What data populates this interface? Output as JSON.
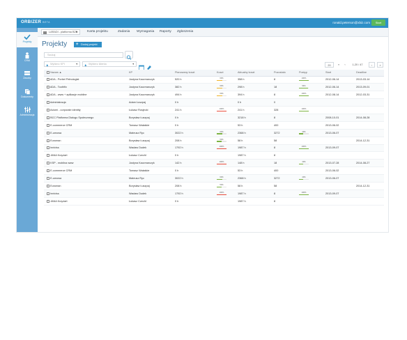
{
  "topbar": {
    "logo": "ORBIZER",
    "logo_sub": "BETA",
    "user_email": "ronald.peterson@xbiz.com",
    "start_label": "Start"
  },
  "sidebar": {
    "items": [
      {
        "label": "Projekty",
        "icon": "check-icon",
        "active": true
      },
      {
        "label": "CRM",
        "icon": "person-icon",
        "active": false
      },
      {
        "label": "Zasoby",
        "icon": "box-icon",
        "active": false
      },
      {
        "label": "Dokumenty",
        "icon": "documents-icon",
        "active": false
      },
      {
        "label": "Administracja",
        "icon": "sliders-icon",
        "active": false
      }
    ]
  },
  "navbar": {
    "project_select": "LARADI - platforma B2B",
    "items": [
      "Karta projektu",
      "Zadania",
      "Wymagania",
      "Raporty",
      "Zgłoszenia"
    ]
  },
  "main": {
    "title": "Projekty",
    "add_button": "Dodaj projekt",
    "search_placeholder": "Szukaj",
    "filter_kp_placeholder": "Wybierz KPI",
    "filter_client_placeholder": "Wybierz klienta",
    "page_size": "20",
    "page_range": "1-20 / 47"
  },
  "table": {
    "columns": [
      "Nazwa",
      "KP",
      "Planowany koszt",
      "Koszt",
      "Aktualny koszt",
      "Pozostało",
      "Postęp",
      "Start",
      "Deadline"
    ],
    "rows": [
      {
        "name": "ADA - Porbel Pełnologist",
        "kp": "Justyna Kaczmarczyk",
        "planned": "520 h",
        "cost_pct": 60,
        "cost_lbl": "60%",
        "cost_color": "#f0b429",
        "actual": "358 h",
        "left": "8",
        "prog_pct": 100,
        "prog_lbl": "100%",
        "start": "2012-06-14",
        "deadline": "2013-03-14"
      },
      {
        "name": "ADA - Toothfix",
        "kp": "Justyna Kaczmarczyk",
        "planned": "382 h",
        "cost_pct": 60,
        "cost_lbl": "60%",
        "cost_color": "#f0b429",
        "actual": "298 h",
        "left": "18",
        "prog_pct": 94,
        "prog_lbl": "94%",
        "start": "2012-06-14",
        "deadline": "2013-09-01"
      },
      {
        "name": "ADA - www + aplikacje mobilne",
        "kp": "Justyna Kaczmarczyk",
        "planned": "494 h",
        "cost_pct": 60,
        "cost_lbl": "60%",
        "cost_color": "#f0b429",
        "actual": "394 h",
        "left": "8",
        "prog_pct": 100,
        "prog_lbl": "100%",
        "start": "2012-08-14",
        "deadline": "2012-03-31"
      },
      {
        "name": "Administracja",
        "kp": "Adam Łuszpaj",
        "planned": "0 h",
        "cost_pct": 0,
        "cost_lbl": "",
        "cost_color": "#f0b429",
        "actual": "0 h",
        "left": "0",
        "prog_pct": 0,
        "prog_lbl": "",
        "start": "",
        "deadline": ""
      },
      {
        "name": "Aviomi - corporate identity",
        "kp": "Łukasz Rosjecki",
        "planned": "241 h",
        "cost_pct": 100,
        "cost_lbl": "100%",
        "cost_color": "#e74c3c",
        "actual": "241 h",
        "left": "328",
        "prog_pct": 100,
        "prog_lbl": "100%",
        "start": "",
        "deadline": ""
      },
      {
        "name": "BCC Platforma Dialogu Społecznego",
        "kp": "Borysław Łuszpaj",
        "planned": "0 h",
        "cost_pct": 0,
        "cost_lbl": "",
        "cost_color": "#f0b429",
        "actual": "3218 h",
        "left": "8",
        "prog_pct": 0,
        "prog_lbl": "",
        "start": "2008-10-01",
        "deadline": "2014-08-28"
      },
      {
        "name": "E-commerce CRM",
        "kp": "Tomasz Walaśkie",
        "planned": "0 h",
        "cost_pct": 0,
        "cost_lbl": "",
        "cost_color": "#f0b429",
        "actual": "53 h",
        "left": "400",
        "prog_pct": 0,
        "prog_lbl": "",
        "start": "2013-06-02",
        "deadline": ""
      },
      {
        "name": "E-umowa",
        "kp": "Mateusz Ryc",
        "planned": "3022 h",
        "cost_pct": 60,
        "cost_lbl": "60%",
        "cost_color": "#7cb342",
        "actual": "2368 h",
        "left": "3272",
        "prog_pct": 40,
        "prog_lbl": "40%",
        "start": "2013-06-07",
        "deadline": ""
      },
      {
        "name": "Euroman",
        "kp": "Borysław Łuszpaj",
        "planned": "208 h",
        "cost_pct": 50,
        "cost_lbl": "50%",
        "cost_color": "#7cb342",
        "actual": "58 h",
        "left": "58",
        "prog_pct": 0,
        "prog_lbl": "",
        "start": "",
        "deadline": "2014-12-31"
      },
      {
        "name": "Inniviss",
        "kp": "Wacław Dudek",
        "planned": "1792 h",
        "cost_pct": 100,
        "cost_lbl": "100%",
        "cost_color": "#e74c3c",
        "actual": "1987 h",
        "left": "8",
        "prog_pct": 100,
        "prog_lbl": "100%",
        "start": "2013-09-07",
        "deadline": ""
      },
      {
        "name": "JANA Krzyżart",
        "kp": "Łukasz Czechł",
        "planned": "0 h",
        "cost_pct": 0,
        "cost_lbl": "",
        "cost_color": "#f0b429",
        "actual": "1987 h",
        "left": "8",
        "prog_pct": 0,
        "prog_lbl": "",
        "start": "",
        "deadline": ""
      },
      {
        "name": "KSP - mobilna www",
        "kp": "Justyna Kaczmarczyk",
        "planned": "142 h",
        "cost_pct": 100,
        "cost_lbl": "100%",
        "cost_color": "#e74c3c",
        "actual": "148 h",
        "left": "18",
        "prog_pct": 40,
        "prog_lbl": "40%",
        "start": "2013-07-28",
        "deadline": "2014-08-27"
      },
      {
        "name": "E-commerce CRM",
        "kp": "Tomasz Walaśkie",
        "planned": "0 h",
        "cost_pct": 0,
        "cost_lbl": "",
        "cost_color": "#f0b429",
        "actual": "53 h",
        "left": "400",
        "prog_pct": 0,
        "prog_lbl": "",
        "start": "2013-06-02",
        "deadline": ""
      },
      {
        "name": "E-umowa",
        "kp": "Mateusz Ryc",
        "planned": "3022 h",
        "cost_pct": 60,
        "cost_lbl": "60%",
        "cost_color": "#7cb342",
        "actual": "2368 h",
        "left": "3272",
        "prog_pct": 40,
        "prog_lbl": "40%",
        "start": "2013-06-07",
        "deadline": ""
      },
      {
        "name": "Euroman",
        "kp": "Borysław Łuszpaj",
        "planned": "208 h",
        "cost_pct": 50,
        "cost_lbl": "50%",
        "cost_color": "#7cb342",
        "actual": "58 h",
        "left": "58",
        "prog_pct": 0,
        "prog_lbl": "",
        "start": "",
        "deadline": "2014-12-31"
      },
      {
        "name": "Inniviss",
        "kp": "Wacław Dudek",
        "planned": "1792 h",
        "cost_pct": 100,
        "cost_lbl": "100%",
        "cost_color": "#e74c3c",
        "actual": "1987 h",
        "left": "8",
        "prog_pct": 100,
        "prog_lbl": "100%",
        "start": "2013-09-07",
        "deadline": ""
      },
      {
        "name": "JANA Krzyżart",
        "kp": "Łukasz Czechł",
        "planned": "0 h",
        "cost_pct": 0,
        "cost_lbl": "",
        "cost_color": "#f0b429",
        "actual": "1987 h",
        "left": "8",
        "prog_pct": 0,
        "prog_lbl": "",
        "start": "",
        "deadline": ""
      }
    ]
  },
  "colors": {
    "brand": "#2e8fc7",
    "sidebar": "#6aa8d6",
    "start_button": "#5cb85c",
    "progress": "#7cb342"
  }
}
